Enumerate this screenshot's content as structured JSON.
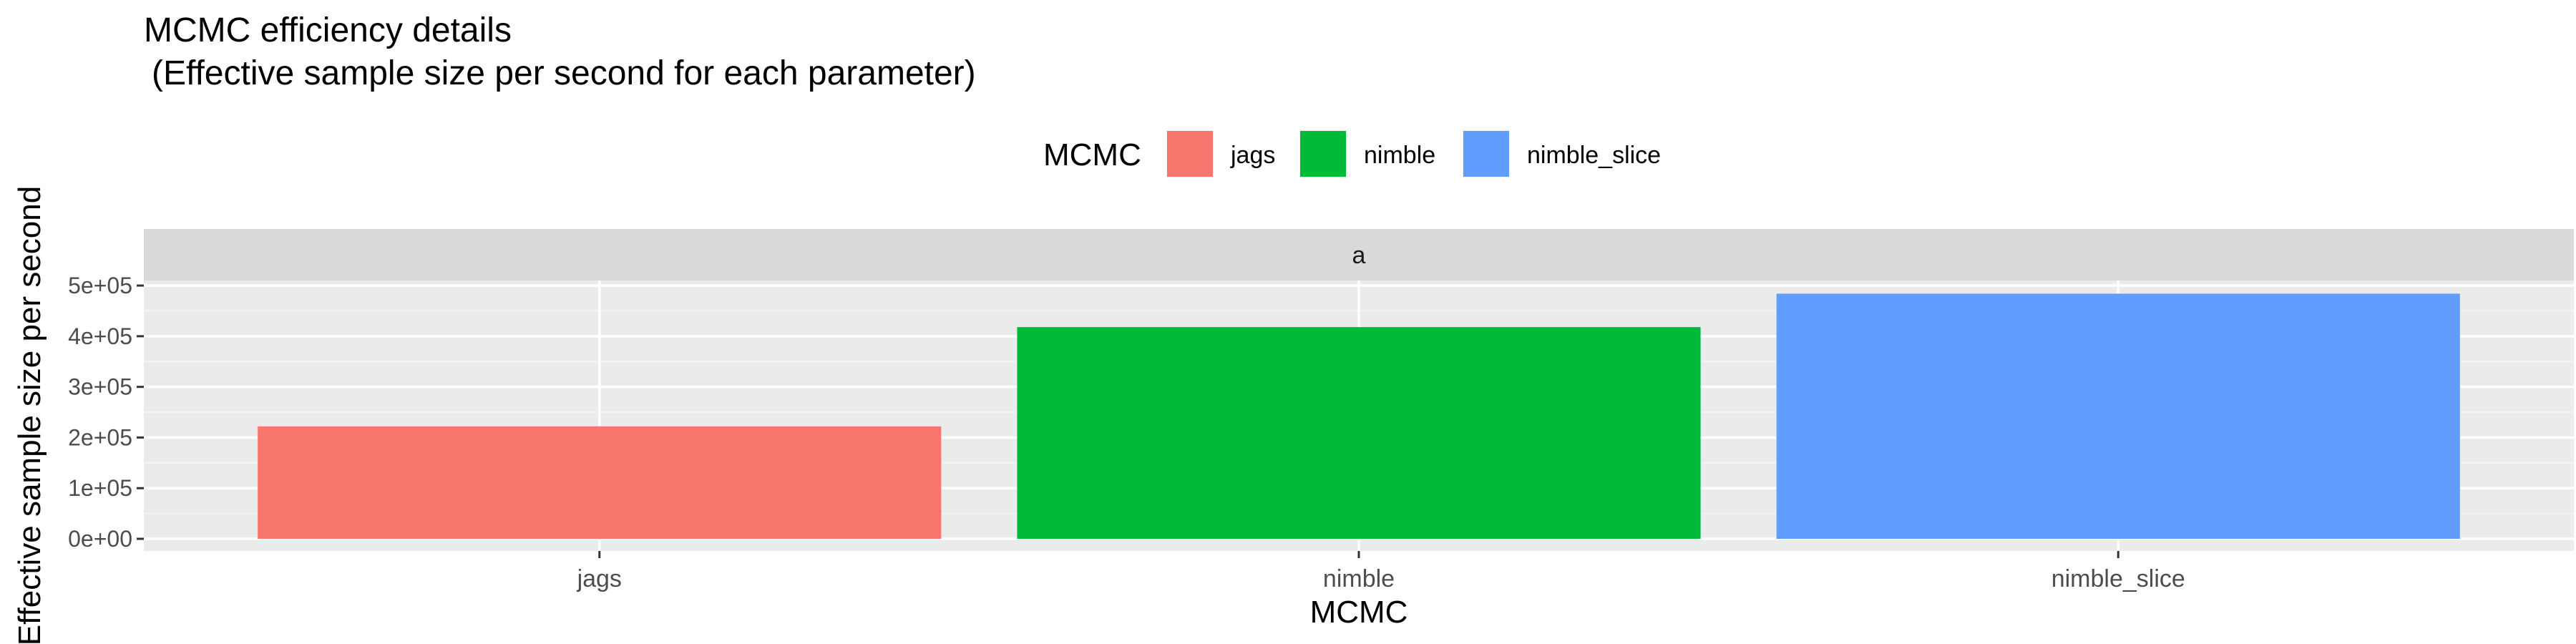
{
  "chart_data": {
    "type": "bar",
    "title": "MCMC efficiency details",
    "subtitle": "(Effective sample size per second for each parameter)",
    "xlabel": "MCMC",
    "ylabel": "Effective sample size per second",
    "facet_label": "a",
    "legend_title": "MCMC",
    "legend_position": "top",
    "categories": [
      "jags",
      "nimble",
      "nimble_slice"
    ],
    "values": [
      222000,
      418000,
      484000
    ],
    "colors": [
      "#F8766D",
      "#00BA38",
      "#619CFF"
    ],
    "y_ticks": [
      0,
      100000,
      200000,
      300000,
      400000,
      500000
    ],
    "y_tick_labels": [
      "0e+00",
      "1e+05",
      "2e+05",
      "3e+05",
      "4e+05",
      "5e+05"
    ],
    "ylim": [
      -24000,
      510000
    ],
    "grid": true
  }
}
